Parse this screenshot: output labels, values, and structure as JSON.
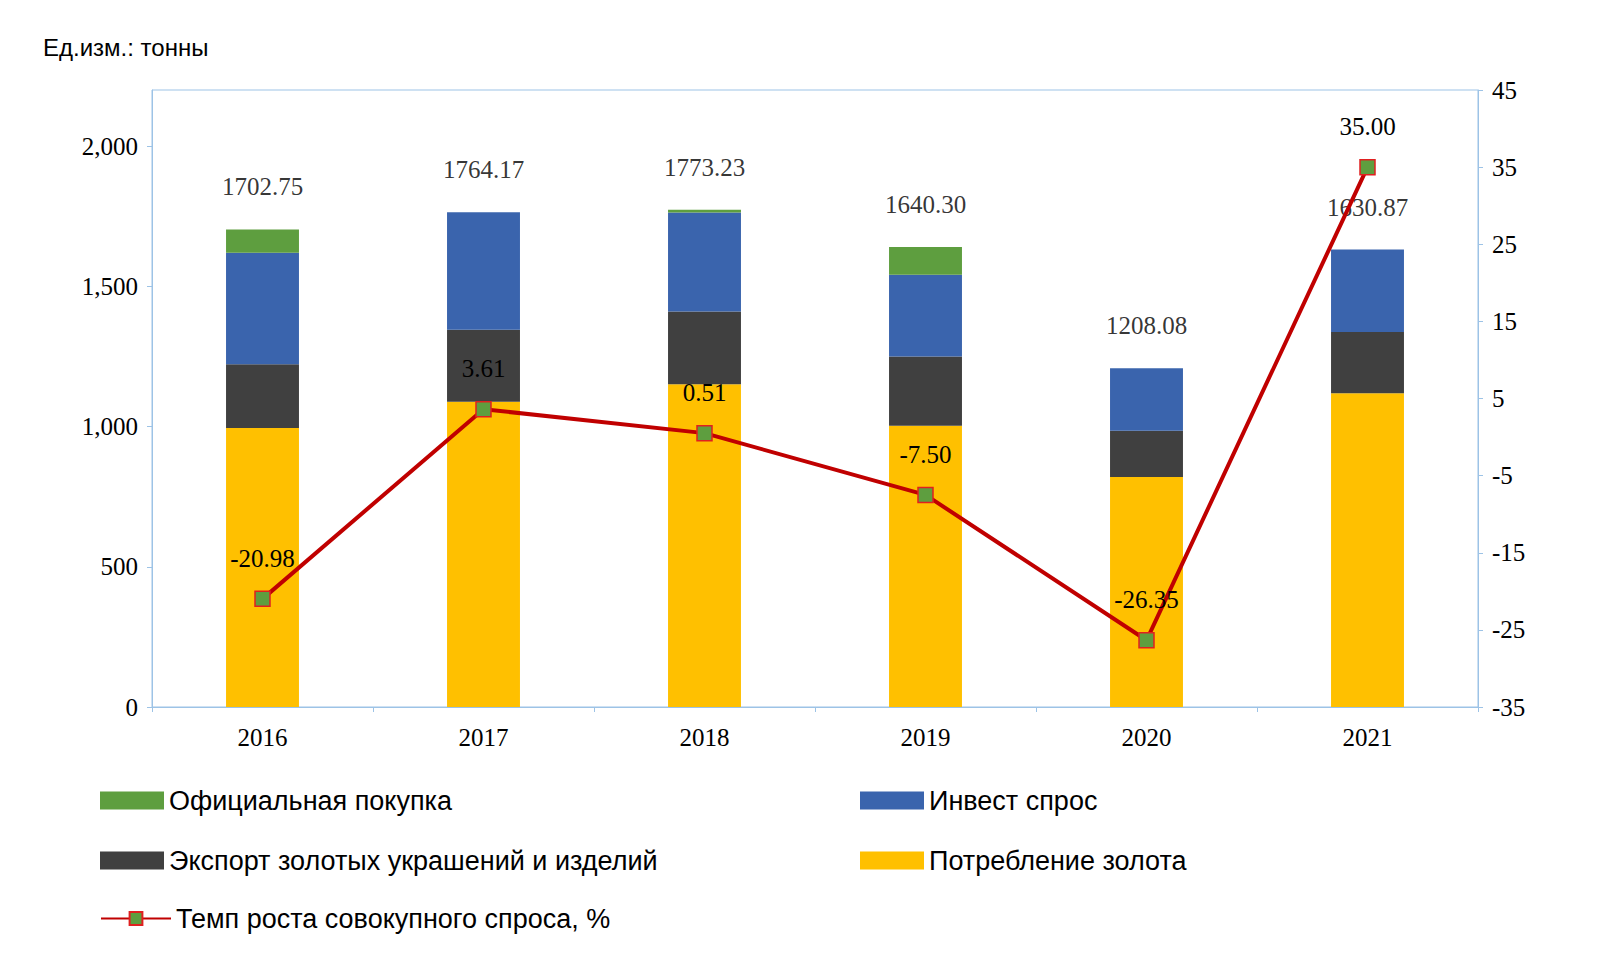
{
  "chart_data": {
    "type": "bar",
    "title": "Ед.изм.: тонны",
    "categories": [
      "2016",
      "2017",
      "2018",
      "2019",
      "2020",
      "2021"
    ],
    "stacked": true,
    "legend": "bottom",
    "grid": false,
    "series": [
      {
        "name": "Официальная покупка",
        "color": "#5e9e3f",
        "values": [
          83,
          0,
          10,
          99,
          0,
          0
        ]
      },
      {
        "name": "Инвест спрос",
        "color": "#3a64ad",
        "values": [
          398,
          419,
          353,
          291,
          223,
          294
        ]
      },
      {
        "name": "Экспорт золотых украшений и изделий",
        "color": "#404040",
        "values": [
          227,
          257,
          259,
          247,
          165,
          218
        ]
      },
      {
        "name": "Потребление золота",
        "color": "#ffc000",
        "values": [
          995,
          1088,
          1151,
          1003,
          820,
          1119
        ]
      },
      {
        "name": "Темп роста совокупного спроса, %",
        "type": "line",
        "axis": "y2",
        "color": "#c00000",
        "marker": "square",
        "line_style": "solid",
        "data_labels": true,
        "values": [
          -20.98,
          3.61,
          0.51,
          -7.5,
          -26.35,
          35
        ],
        "value_labels": [
          "-20.98",
          "3.61",
          "0.51",
          "-7.50",
          "-26.35",
          "35.00"
        ]
      }
    ],
    "totals": [
      1702.75,
      1764.17,
      1773.23,
      1640.3,
      1208.08,
      1630.87
    ],
    "total_labels": [
      "1702.75",
      "1764.17",
      "1773.23",
      "1640.30",
      "1208.08",
      "1630.87"
    ],
    "ylim": [
      0,
      2200
    ],
    "yticks": [
      0,
      500,
      1000,
      1500,
      2000
    ],
    "y2lim": [
      -35,
      45
    ],
    "y2ticks": [
      -35,
      -25,
      -15,
      -5,
      5,
      15,
      25,
      35,
      45
    ]
  }
}
